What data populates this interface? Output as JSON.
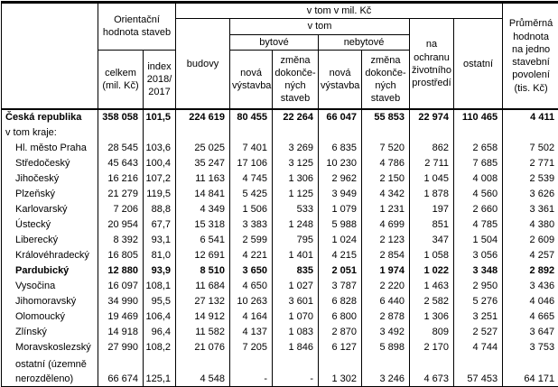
{
  "header": {
    "stub": "",
    "orientacni": "Orientační\nhodnota staveb",
    "vtom_mil_kc": "v tom v mil. Kč",
    "prumerna": "Průměrná\nhodnota\nna jedno\nstavební\npovolení\n(tis. Kč)",
    "celkem": "celkem\n(mil. Kč)",
    "index": "index\n2018/\n2017",
    "budovy": "budovy",
    "vtom": "v tom",
    "bytove": "bytové",
    "nebytove": "nebytové",
    "nova_vystavba_byt": "nová\nvýstavba",
    "zmena_dokoncenych_byt": "změna\ndokonče-\nných\nstaveb",
    "nova_vystavba_nebyt": "nová\nvýstavba",
    "zmena_dokoncenych_nebyt": "změna\ndokonče-\nných\nstaveb",
    "ochrana": "na\nochranu\nživotního\nprostředí",
    "ostatni": "ostatní"
  },
  "chart_data": {
    "type": "table",
    "title": "Orientační hodnota staveb podle krajů, v tom v mil. Kč",
    "column_keys": [
      "celkem",
      "index",
      "budovy",
      "bytove_nova",
      "bytove_zmena",
      "nebytove_nova",
      "nebytove_zmena",
      "ochrana",
      "ostatni",
      "prumerna"
    ],
    "column_labels": [
      "celkem (mil. Kč)",
      "index 2018/2017",
      "budovy",
      "bytové nová výstavba",
      "bytové změna dokončených staveb",
      "nebytové nová výstavba",
      "nebytové změna dokončených staveb",
      "na ochranu životního prostředí",
      "ostatní",
      "Průměrná hodnota na jedno stavební povolení (tis. Kč)"
    ],
    "rows": [
      {
        "label": "Česká republika",
        "bold": true,
        "indent": false,
        "wrap": false,
        "values": [
          "358 058",
          "101,5",
          "224 619",
          "80 455",
          "22 264",
          "66 047",
          "55 853",
          "22 974",
          "110 465",
          "4 411"
        ]
      },
      {
        "label": "v tom kraje:",
        "bold": false,
        "indent": false,
        "wrap": false,
        "values": [
          "",
          "",
          "",
          "",
          "",
          "",
          "",
          "",
          "",
          ""
        ]
      },
      {
        "label": "Hl. město Praha",
        "bold": false,
        "indent": true,
        "wrap": false,
        "values": [
          "28 545",
          "103,6",
          "25 025",
          "7 401",
          "3 269",
          "6 835",
          "7 520",
          "862",
          "2 658",
          "7 502"
        ]
      },
      {
        "label": "Středočeský",
        "bold": false,
        "indent": true,
        "wrap": false,
        "values": [
          "45 643",
          "100,4",
          "35 247",
          "17 106",
          "3 125",
          "10 230",
          "4 786",
          "2 711",
          "7 685",
          "2 771"
        ]
      },
      {
        "label": "Jihočeský",
        "bold": false,
        "indent": true,
        "wrap": false,
        "values": [
          "16 216",
          "107,2",
          "11 163",
          "4 745",
          "1 306",
          "2 962",
          "2 150",
          "1 045",
          "4 008",
          "2 539"
        ]
      },
      {
        "label": "Plzeňský",
        "bold": false,
        "indent": true,
        "wrap": false,
        "values": [
          "21 279",
          "119,5",
          "14 841",
          "5 425",
          "1 125",
          "3 949",
          "4 342",
          "1 878",
          "4 560",
          "3 626"
        ]
      },
      {
        "label": "Karlovarský",
        "bold": false,
        "indent": true,
        "wrap": false,
        "values": [
          "7 206",
          "88,8",
          "4 349",
          "1 506",
          "533",
          "1 079",
          "1 231",
          "197",
          "2 660",
          "3 361"
        ]
      },
      {
        "label": "Ústecký",
        "bold": false,
        "indent": true,
        "wrap": false,
        "values": [
          "20 954",
          "67,7",
          "15 318",
          "3 383",
          "1 248",
          "5 988",
          "4 699",
          "851",
          "4 785",
          "4 380"
        ]
      },
      {
        "label": "Liberecký",
        "bold": false,
        "indent": true,
        "wrap": false,
        "values": [
          "8 392",
          "93,1",
          "6 541",
          "2 599",
          "795",
          "1 024",
          "2 123",
          "347",
          "1 504",
          "2 609"
        ]
      },
      {
        "label": "Královéhradecký",
        "bold": false,
        "indent": true,
        "wrap": false,
        "values": [
          "16 805",
          "81,0",
          "12 691",
          "4 221",
          "1 401",
          "4 215",
          "2 854",
          "1 058",
          "3 056",
          "4 257"
        ]
      },
      {
        "label": "Pardubický",
        "bold": true,
        "indent": true,
        "wrap": false,
        "values": [
          "12 880",
          "93,9",
          "8 510",
          "3 650",
          "835",
          "2 051",
          "1 974",
          "1 022",
          "3 348",
          "2 892"
        ]
      },
      {
        "label": "Vysočina",
        "bold": false,
        "indent": true,
        "wrap": false,
        "values": [
          "16 097",
          "108,1",
          "11 684",
          "4 650",
          "1 027",
          "3 787",
          "2 220",
          "1 463",
          "2 950",
          "3 436"
        ]
      },
      {
        "label": "Jihomoravský",
        "bold": false,
        "indent": true,
        "wrap": false,
        "values": [
          "34 990",
          "95,5",
          "27 132",
          "10 263",
          "3 601",
          "6 828",
          "6 440",
          "2 582",
          "5 276",
          "4 046"
        ]
      },
      {
        "label": "Olomoucký",
        "bold": false,
        "indent": true,
        "wrap": false,
        "values": [
          "19 469",
          "106,4",
          "14 912",
          "4 164",
          "1 070",
          "6 800",
          "2 878",
          "1 306",
          "3 251",
          "4 665"
        ]
      },
      {
        "label": "Zlínský",
        "bold": false,
        "indent": true,
        "wrap": false,
        "values": [
          "14 918",
          "96,4",
          "11 582",
          "4 137",
          "1 083",
          "2 870",
          "3 492",
          "809",
          "2 527",
          "3 647"
        ]
      },
      {
        "label": "Moravskoslezský",
        "bold": false,
        "indent": true,
        "wrap": false,
        "values": [
          "27 990",
          "108,2",
          "21 076",
          "7 205",
          "1 846",
          "6 127",
          "5 898",
          "2 170",
          "4 744",
          "3 753"
        ]
      },
      {
        "label": "ostatní (územně nerozděleno)",
        "bold": false,
        "indent": true,
        "wrap": true,
        "values": [
          "66 674",
          "125,1",
          "4 548",
          "-",
          "-",
          "1 302",
          "3 246",
          "4 673",
          "57 453",
          "64 171"
        ]
      }
    ]
  }
}
